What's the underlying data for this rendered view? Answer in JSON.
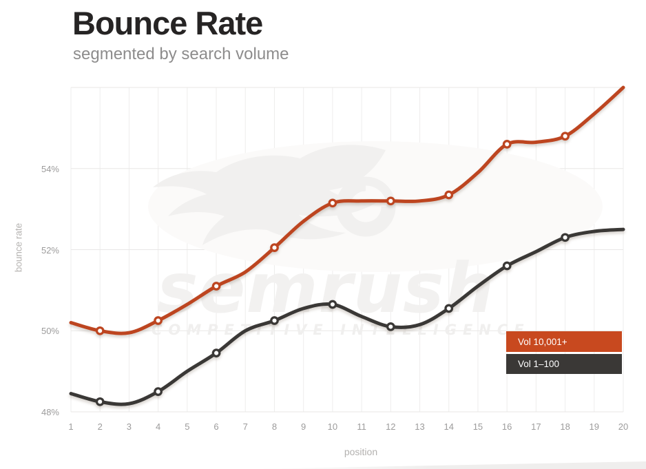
{
  "header": {
    "title": "Bounce Rate",
    "subtitle": "segmented by search volume"
  },
  "watermark": {
    "wordmark": "semrush",
    "tagline": "COMPETITIVE INTELLIGENCE",
    "color": "#f2f1f0"
  },
  "chart_data": {
    "type": "line",
    "title": "Bounce Rate",
    "subtitle": "segmented by search volume",
    "xlabel": "position",
    "ylabel": "bounce rate",
    "x": [
      1,
      2,
      3,
      4,
      5,
      6,
      7,
      8,
      9,
      10,
      11,
      12,
      13,
      14,
      15,
      16,
      17,
      18,
      19,
      20
    ],
    "xlim": [
      1,
      20
    ],
    "ylim": [
      48,
      56
    ],
    "yticks": [
      {
        "value": 48,
        "label": "48%"
      },
      {
        "value": 50,
        "label": "50%"
      },
      {
        "value": 52,
        "label": "52%"
      },
      {
        "value": 54,
        "label": "54%"
      }
    ],
    "grid": true,
    "legend_position": "bottom-right",
    "marker_positions": [
      2,
      4,
      6,
      8,
      10,
      12,
      14,
      16,
      18
    ],
    "series": [
      {
        "name": "Vol 10,001+",
        "color": "#c8491f",
        "line_color": "#bd4520",
        "values": [
          50.2,
          50.0,
          49.95,
          50.25,
          50.65,
          51.1,
          51.45,
          52.05,
          52.7,
          53.15,
          53.2,
          53.2,
          53.2,
          53.35,
          53.9,
          54.6,
          54.65,
          54.8,
          55.35,
          56.0
        ]
      },
      {
        "name": "Vol 1–100",
        "color": "#3a3836",
        "line_color": "#3a3836",
        "values": [
          48.45,
          48.25,
          48.2,
          48.5,
          49.0,
          49.45,
          50.0,
          50.25,
          50.55,
          50.65,
          50.35,
          50.1,
          50.15,
          50.55,
          51.1,
          51.6,
          51.95,
          52.3,
          52.45,
          52.5
        ]
      }
    ]
  }
}
